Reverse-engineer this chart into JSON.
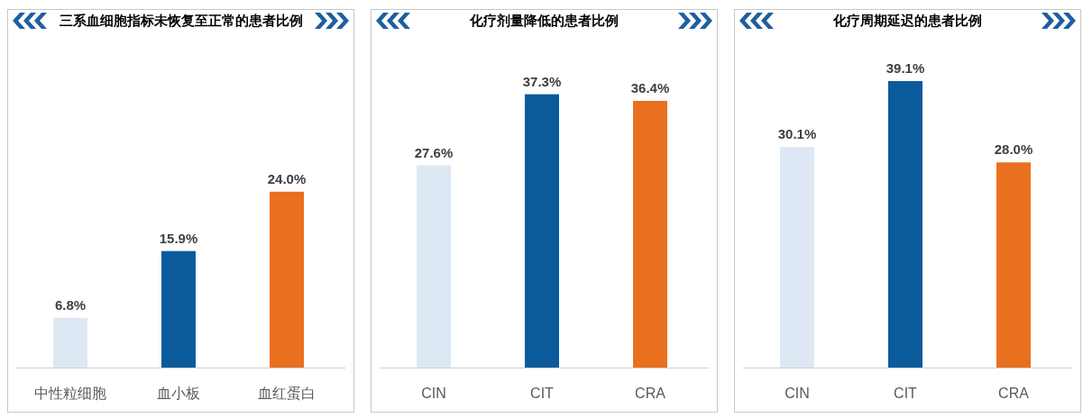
{
  "chart_data": [
    {
      "type": "bar",
      "title": "三系血细胞指标未恢复至正常的患者比例",
      "categories": [
        "中性粒细胞",
        "血小板",
        "血红蛋白"
      ],
      "values": [
        6.8,
        15.9,
        24.0
      ],
      "value_labels": [
        "6.8%",
        "15.9%",
        "24.0%"
      ],
      "colors": [
        "#dde8f4",
        "#0a5a9c",
        "#e8701e"
      ]
    },
    {
      "type": "bar",
      "title": "化疗剂量降低的患者比例",
      "categories": [
        "CIN",
        "CIT",
        "CRA"
      ],
      "values": [
        27.6,
        37.3,
        36.4
      ],
      "value_labels": [
        "27.6%",
        "37.3%",
        "36.4%"
      ],
      "colors": [
        "#dde8f4",
        "#0a5a9c",
        "#e8701e"
      ]
    },
    {
      "type": "bar",
      "title": "化疗周期延迟的患者比例",
      "categories": [
        "CIN",
        "CIT",
        "CRA"
      ],
      "values": [
        30.1,
        39.1,
        28.0
      ],
      "value_labels": [
        "30.1%",
        "39.1%",
        "28.0%"
      ],
      "colors": [
        "#dde8f4",
        "#0a5a9c",
        "#e8701e"
      ]
    }
  ]
}
